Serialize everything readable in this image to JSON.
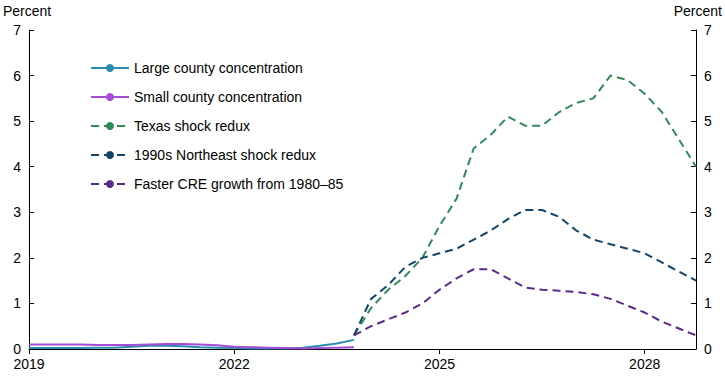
{
  "chart_data": {
    "type": "line",
    "ylabel": "Percent",
    "y2label": "Percent",
    "xlim": [
      2019,
      2028.75
    ],
    "xticks": [
      2019,
      2022,
      2025,
      2028
    ],
    "ylim": [
      0,
      7
    ],
    "yticks": [
      0,
      1,
      2,
      3,
      4,
      5,
      6,
      7
    ],
    "y2lim": [
      0,
      7
    ],
    "y2ticks": [
      0,
      1,
      2,
      3,
      4,
      5,
      6,
      7
    ],
    "grid": false,
    "legend": "top-left",
    "series": [
      {
        "name": "Large county concentration",
        "color": "#2b8cb0",
        "line_style": "solid",
        "x": [
          2019,
          2019.25,
          2019.5,
          2019.75,
          2020,
          2020.25,
          2020.5,
          2020.75,
          2021,
          2021.25,
          2021.5,
          2021.75,
          2022,
          2022.25,
          2022.5,
          2022.75,
          2023,
          2023.25,
          2023.5,
          2023.75
        ],
        "values": [
          0.02,
          0.02,
          0.02,
          0.02,
          0.03,
          0.03,
          0.05,
          0.07,
          0.07,
          0.06,
          0.04,
          0.03,
          0.02,
          0.01,
          0.01,
          0.01,
          0.03,
          0.07,
          0.12,
          0.2
        ]
      },
      {
        "name": "Small county concentration",
        "color": "#a64dd6",
        "line_style": "solid",
        "x": [
          2019,
          2019.25,
          2019.5,
          2019.75,
          2020,
          2020.25,
          2020.5,
          2020.75,
          2021,
          2021.25,
          2021.5,
          2021.75,
          2022,
          2022.25,
          2022.5,
          2022.75,
          2023,
          2023.25,
          2023.5,
          2023.75
        ],
        "values": [
          0.1,
          0.1,
          0.1,
          0.1,
          0.09,
          0.09,
          0.09,
          0.1,
          0.11,
          0.11,
          0.1,
          0.08,
          0.05,
          0.04,
          0.03,
          0.02,
          0.01,
          0.02,
          0.03,
          0.04
        ]
      },
      {
        "name": "Texas shock redux",
        "color": "#2e8b57",
        "line_style": "dashed",
        "x": [
          2023.75,
          2024,
          2024.25,
          2024.5,
          2024.75,
          2025,
          2025.25,
          2025.5,
          2025.75,
          2026,
          2026.25,
          2026.5,
          2026.75,
          2027,
          2027.25,
          2027.5,
          2027.75,
          2028,
          2028.25,
          2028.5,
          2028.75
        ],
        "values": [
          0.3,
          0.9,
          1.3,
          1.6,
          2.0,
          2.7,
          3.3,
          4.4,
          4.7,
          5.1,
          4.9,
          4.9,
          5.2,
          5.4,
          5.5,
          6.0,
          5.9,
          5.6,
          5.2,
          4.6,
          4.0
        ]
      },
      {
        "name": "1990s Northeast shock redux",
        "color": "#12456b",
        "line_style": "dashed",
        "x": [
          2023.75,
          2024,
          2024.25,
          2024.5,
          2024.75,
          2025,
          2025.25,
          2025.5,
          2025.75,
          2026,
          2026.25,
          2026.5,
          2026.75,
          2027,
          2027.25,
          2027.5,
          2027.75,
          2028,
          2028.25,
          2028.5,
          2028.75
        ],
        "values": [
          0.3,
          1.1,
          1.4,
          1.8,
          2.0,
          2.1,
          2.2,
          2.4,
          2.6,
          2.85,
          3.05,
          3.05,
          2.9,
          2.6,
          2.4,
          2.3,
          2.2,
          2.1,
          1.9,
          1.7,
          1.5
        ]
      },
      {
        "name": "Faster CRE growth from 1980–85",
        "color": "#5b2a86",
        "line_style": "dashed",
        "x": [
          2023.75,
          2024,
          2024.25,
          2024.5,
          2024.75,
          2025,
          2025.25,
          2025.5,
          2025.75,
          2026,
          2026.25,
          2026.5,
          2026.75,
          2027,
          2027.25,
          2027.5,
          2027.75,
          2028,
          2028.25,
          2028.5,
          2028.75
        ],
        "values": [
          0.3,
          0.5,
          0.65,
          0.8,
          1.0,
          1.3,
          1.55,
          1.75,
          1.75,
          1.55,
          1.35,
          1.3,
          1.28,
          1.25,
          1.2,
          1.1,
          0.95,
          0.8,
          0.6,
          0.45,
          0.3
        ]
      }
    ]
  }
}
